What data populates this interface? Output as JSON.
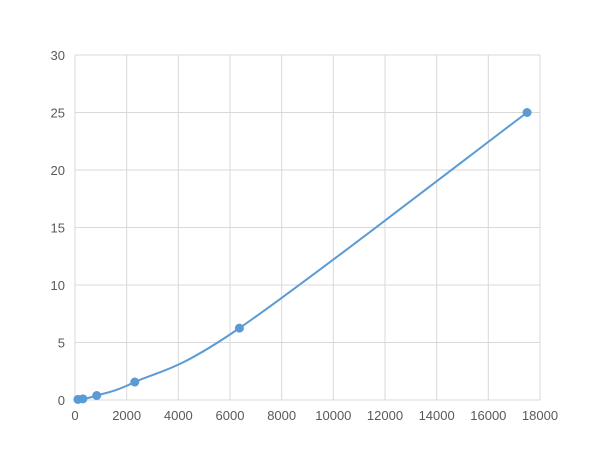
{
  "chart_data": {
    "type": "scatter",
    "title": "",
    "xlabel": "",
    "ylabel": "",
    "xlim": [
      0,
      18000
    ],
    "ylim": [
      0,
      30
    ],
    "xticks": [
      0,
      2000,
      4000,
      6000,
      8000,
      10000,
      12000,
      14000,
      16000,
      18000
    ],
    "yticks": [
      0,
      5,
      10,
      15,
      20,
      25,
      30
    ],
    "grid": true,
    "legend": "none",
    "color": "#5b9bd5",
    "series": [
      {
        "x": [
          111,
          306,
          841,
          2314,
          6364,
          17500
        ],
        "y": [
          0.05,
          0.1,
          0.39,
          1.56,
          6.25,
          25
        ]
      }
    ],
    "trendline": "smooth curve through points"
  }
}
